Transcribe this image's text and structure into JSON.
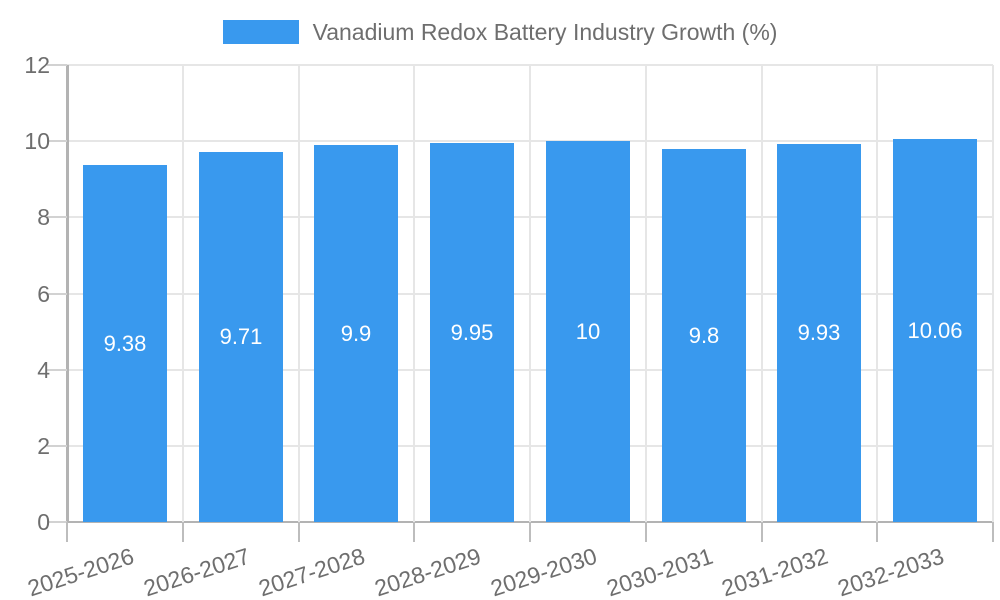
{
  "chart_data": {
    "type": "bar",
    "title": "Vanadium Redox Battery Industry Growth (%)",
    "categories": [
      "2025-2026",
      "2026-2027",
      "2027-2028",
      "2028-2029",
      "2029-2030",
      "2030-2031",
      "2031-2032",
      "2032-2033"
    ],
    "values": [
      9.38,
      9.71,
      9.9,
      9.95,
      10,
      9.8,
      9.93,
      10.06
    ],
    "value_labels": [
      "9.38",
      "9.71",
      "9.9",
      "9.95",
      "10",
      "9.8",
      "9.93",
      "10.06"
    ],
    "yticks": [
      0,
      2,
      4,
      6,
      8,
      10,
      12
    ],
    "ylim": [
      0,
      12
    ],
    "xlabel": "",
    "ylabel": "",
    "grid": true,
    "legend_position": "top",
    "xlabel_rotation_deg": -18,
    "colors": {
      "bar": "#3999ee",
      "bar_label": "#ffffff",
      "gridline": "#e6e6e6",
      "axis_line": "#b3b3b3",
      "axis_text": "#6e6e6e",
      "background": "#ffffff"
    }
  }
}
